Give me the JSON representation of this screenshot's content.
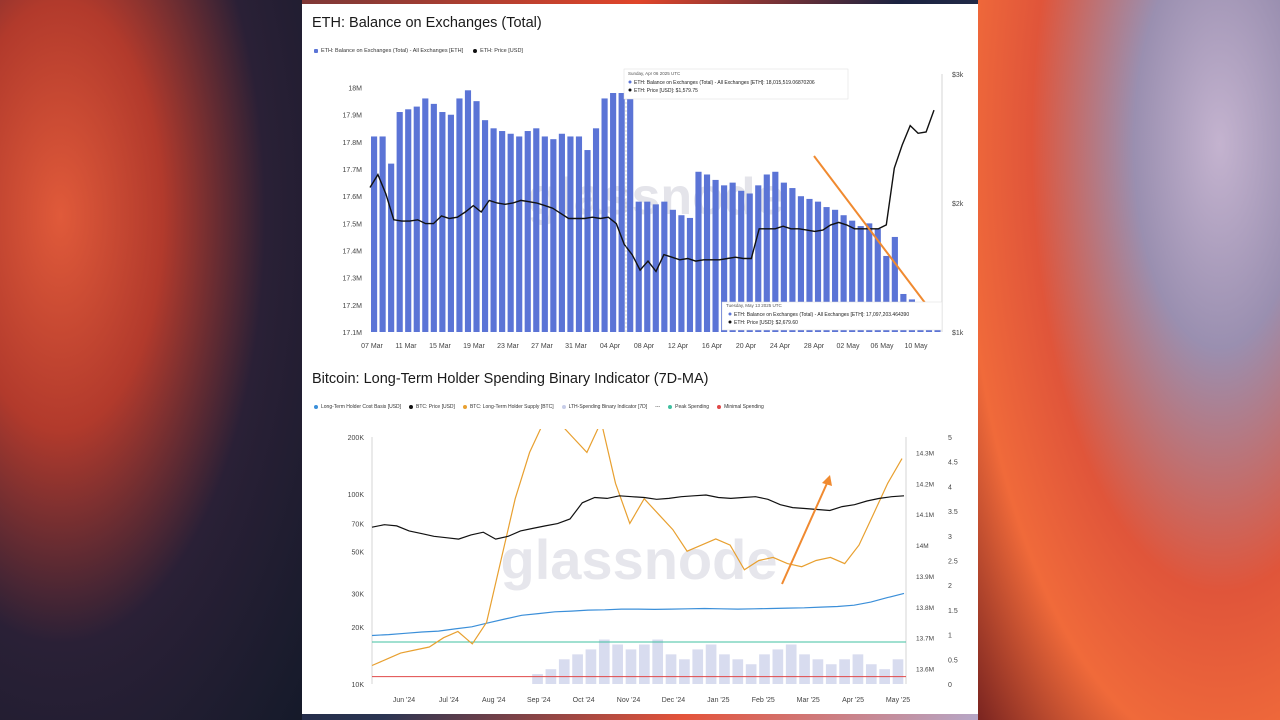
{
  "chart_data": [
    {
      "type": "bar",
      "title": "ETH: Balance on Exchanges (Total)",
      "legend": [
        {
          "label": "ETH: Balance on Exchanges (Total) - All Exchanges [ETH]",
          "color": "#5b74d6"
        },
        {
          "label": "ETH: Price [USD]",
          "color": "#111111"
        }
      ],
      "x_ticks": [
        "07 Mar",
        "11 Mar",
        "15 Mar",
        "19 Mar",
        "23 Mar",
        "27 Mar",
        "31 Mar",
        "04 Apr",
        "08 Apr",
        "12 Apr",
        "16 Apr",
        "20 Apr",
        "24 Apr",
        "28 Apr",
        "02 May",
        "06 May",
        "10 May"
      ],
      "y_left_ticks": [
        "18M",
        "17.9M",
        "17.8M",
        "17.7M",
        "17.6M",
        "17.5M",
        "17.4M",
        "17.3M",
        "17.2M",
        "17.1M"
      ],
      "y_right_ticks": [
        "$3k",
        "$2k",
        "$1k"
      ],
      "ylim_left": [
        17.1,
        18.05
      ],
      "ylim_right": [
        1000,
        3000
      ],
      "balance_millions": [
        17.82,
        17.82,
        17.72,
        17.91,
        17.92,
        17.93,
        17.96,
        17.94,
        17.91,
        17.9,
        17.96,
        17.99,
        17.95,
        17.88,
        17.85,
        17.84,
        17.83,
        17.82,
        17.84,
        17.85,
        17.82,
        17.81,
        17.83,
        17.82,
        17.82,
        17.77,
        17.85,
        17.96,
        17.98,
        17.98,
        17.98,
        17.58,
        17.58,
        17.57,
        17.58,
        17.55,
        17.53,
        17.52,
        17.69,
        17.68,
        17.66,
        17.64,
        17.65,
        17.62,
        17.61,
        17.64,
        17.68,
        17.69,
        17.65,
        17.63,
        17.6,
        17.59,
        17.58,
        17.56,
        17.55,
        17.53,
        17.51,
        17.49,
        17.5,
        17.48,
        17.38,
        17.45,
        17.24,
        17.22,
        17.21,
        17.2,
        17.19
      ],
      "price_usd": [
        2120,
        2220,
        2070,
        1870,
        1860,
        1860,
        1870,
        1840,
        1840,
        1900,
        1880,
        1890,
        1930,
        1980,
        1930,
        2020,
        2000,
        1990,
        2000,
        2020,
        2010,
        2000,
        1980,
        1960,
        1920,
        1880,
        1880,
        1880,
        1890,
        1880,
        1890,
        1840,
        1680,
        1600,
        1480,
        1550,
        1470,
        1600,
        1580,
        1560,
        1570,
        1550,
        1560,
        1560,
        1560,
        1570,
        1580,
        1570,
        1570,
        1800,
        1800,
        1800,
        1820,
        1800,
        1800,
        1790,
        1780,
        1790,
        1830,
        1850,
        1830,
        1800,
        1800,
        1800,
        1800,
        1830,
        2270,
        2450,
        2600,
        2540,
        2550,
        2720
      ],
      "tooltip_1": {
        "date": "Sunday, Apr 06 2025 UTC",
        "balance": "ETH: Balance on Exchanges (Total) - All Exchanges [ETH]: 18,015,519.06870206",
        "price": "ETH: Price [USD]: $1,579.75"
      },
      "tooltip_2": {
        "date": "Tuesday, May 13 2025 UTC",
        "balance": "ETH: Balance on Exchanges (Total) - All Exchanges [ETH]: 17,097,203.464390",
        "price": "ETH: Price [USD]: $2,679.60"
      },
      "watermark": "glassnode"
    },
    {
      "type": "line",
      "title": "Bitcoin: Long-Term Holder Spending Binary Indicator (7D-MA)",
      "legend": [
        {
          "label": "Long-Term Holder Cost Basis [USD]",
          "color": "#3b8fd9"
        },
        {
          "label": "BTC: Price [USD]",
          "color": "#111111"
        },
        {
          "label": "BTC: Long-Term Holder Supply [BTC]",
          "color": "#e8a030"
        },
        {
          "label": "LTH-Spending Binary Indicator [7D]",
          "color": "#c7cde8"
        },
        {
          "label": "---",
          "color": "#888888"
        },
        {
          "label": "Peak Spending",
          "color": "#40c0a0"
        },
        {
          "label": "Minimal Spending",
          "color": "#e04848"
        }
      ],
      "x_ticks": [
        "Jun '24",
        "Jul '24",
        "Aug '24",
        "Sep '24",
        "Oct '24",
        "Nov '24",
        "Dec '24",
        "Jan '25",
        "Feb '25",
        "Mar '25",
        "Apr '25",
        "May '25"
      ],
      "y_left_ticks": [
        "200K",
        "100K",
        "70K",
        "50K",
        "30K",
        "20K",
        "10K"
      ],
      "y_mid_ticks": [
        "14.3M",
        "14.2M",
        "14.1M",
        "14M",
        "13.9M",
        "13.8M",
        "13.7M",
        "13.6M"
      ],
      "y_right_ticks": [
        "5",
        "4.5",
        "4",
        "3.5",
        "3",
        "2.5",
        "2",
        "1.5",
        "1",
        "0.5",
        "0"
      ],
      "btc_price_k": [
        67,
        69,
        68,
        64,
        62,
        60,
        59,
        58,
        61,
        63,
        58,
        60,
        64,
        66,
        68,
        70,
        74,
        90,
        96,
        95,
        98,
        97,
        96,
        94,
        95,
        97,
        98,
        99,
        96,
        95,
        96,
        97,
        94,
        88,
        85,
        84,
        83,
        82,
        86,
        88,
        92,
        95,
        97,
        98
      ],
      "lth_cost_basis_k": [
        18,
        18.2,
        18.5,
        18.8,
        19,
        19.5,
        20,
        21,
        22,
        23,
        23.5,
        24,
        24.2,
        24.5,
        24.6,
        24.8,
        24.8,
        24.7,
        24.8,
        24.9,
        25,
        24.9,
        24.8,
        24.9,
        25,
        25.1,
        25.2,
        25.4,
        25.6,
        26,
        27,
        28.5,
        30
      ],
      "lth_supply_m": [
        13.61,
        13.63,
        13.65,
        13.66,
        13.67,
        13.7,
        13.72,
        13.68,
        13.75,
        13.95,
        14.15,
        14.3,
        14.4,
        14.4,
        14.35,
        14.3,
        14.4,
        14.2,
        14.07,
        14.15,
        14.1,
        14.05,
        13.98,
        14.0,
        14.02,
        14.0,
        13.92,
        13.95,
        13.96,
        13.94,
        13.93,
        13.95,
        13.96,
        13.94,
        14.0,
        14.1,
        14.2,
        14.28
      ],
      "spending_indicator": [
        0,
        0,
        0,
        0,
        0,
        0,
        0,
        0,
        0,
        0,
        0,
        0,
        0.2,
        0.3,
        0.5,
        0.6,
        0.7,
        0.9,
        0.8,
        0.7,
        0.8,
        0.9,
        0.6,
        0.5,
        0.7,
        0.8,
        0.6,
        0.5,
        0.4,
        0.6,
        0.7,
        0.8,
        0.6,
        0.5,
        0.4,
        0.5,
        0.6,
        0.4,
        0.3,
        0.5
      ],
      "peak_spending_level": 0.85,
      "minimal_spending_level": 0.15,
      "watermark": "glassnode"
    }
  ]
}
